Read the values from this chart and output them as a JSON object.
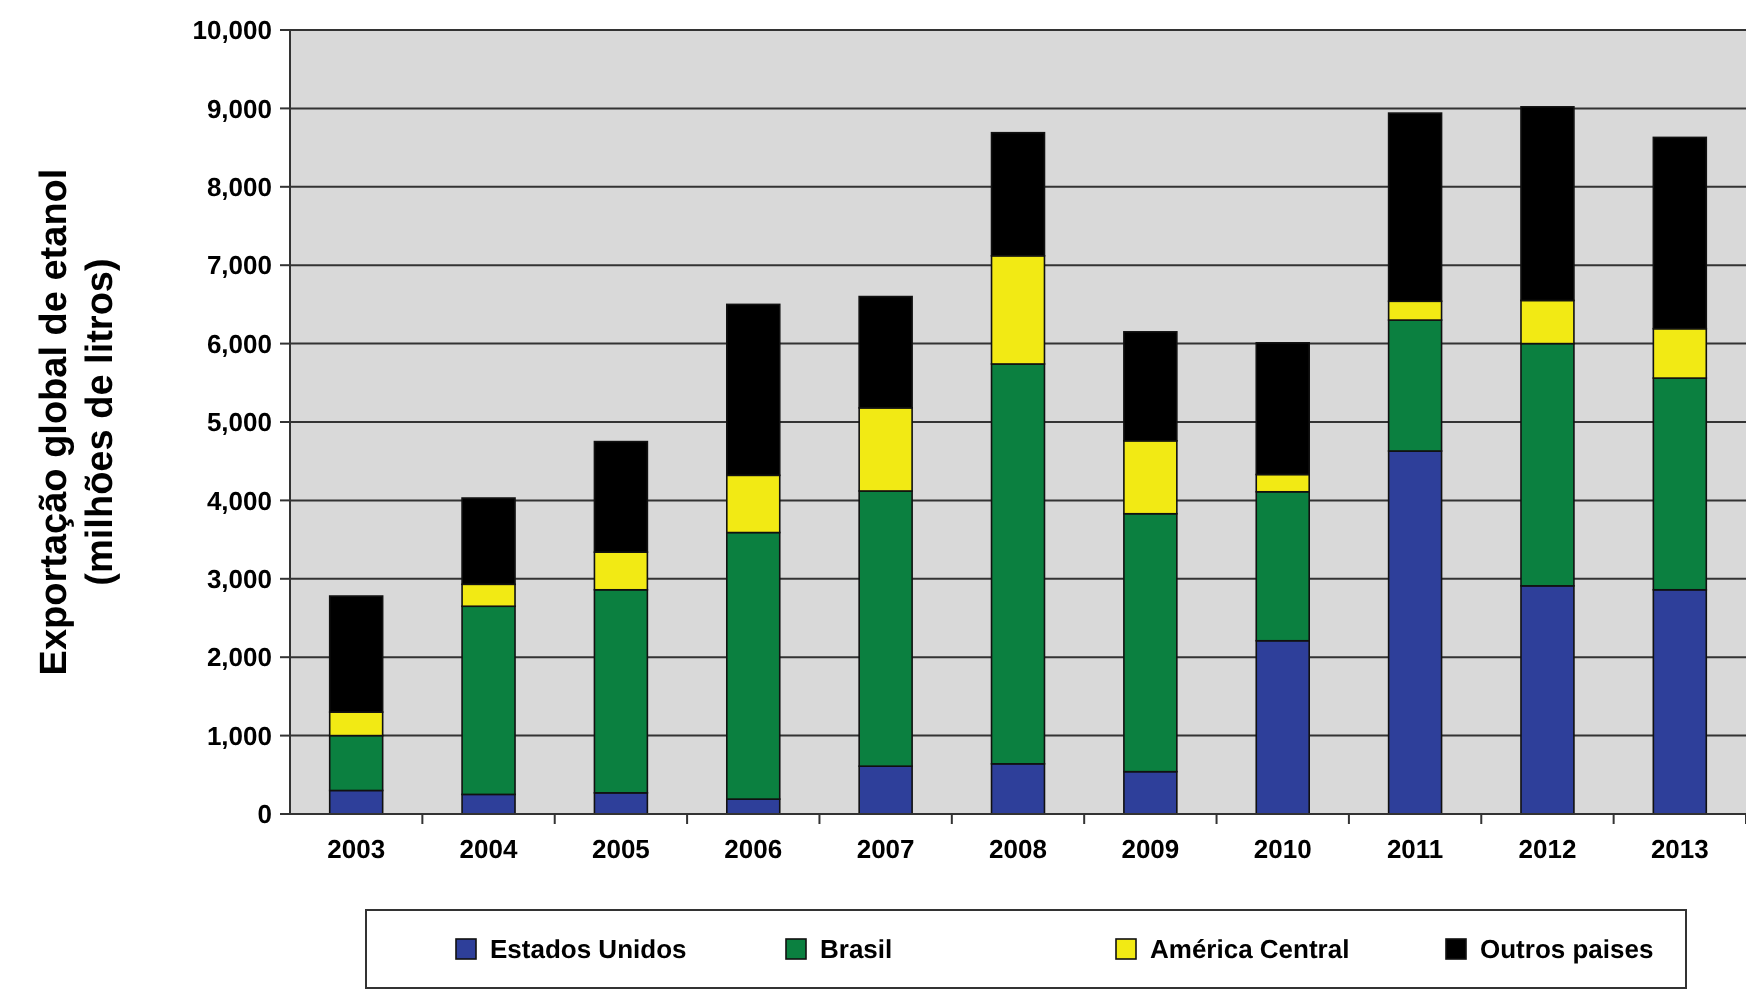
{
  "chart_data": {
    "type": "bar",
    "stacked": true,
    "ylabel": "Exportação global de etanol\n(milhões de litros)",
    "categories": [
      "2003",
      "2004",
      "2005",
      "2006",
      "2007",
      "2008",
      "2009",
      "2010",
      "2011",
      "2012",
      "2013"
    ],
    "series": [
      {
        "name": "Estados Unidos",
        "color": "#2e3f9a",
        "values": [
          300,
          250,
          270,
          190,
          610,
          640,
          540,
          2210,
          4630,
          2910,
          2860
        ]
      },
      {
        "name": "Brasil",
        "color": "#0b8040",
        "values": [
          700,
          2400,
          2590,
          3400,
          3510,
          5100,
          3290,
          1900,
          1670,
          3090,
          2700
        ]
      },
      {
        "name": "América Central",
        "color": "#f2ea14",
        "values": [
          300,
          280,
          480,
          730,
          1060,
          1380,
          930,
          220,
          240,
          550,
          630
        ]
      },
      {
        "name": "Outros paises",
        "color": "#000000",
        "values": [
          1480,
          1100,
          1410,
          2180,
          1420,
          1570,
          1390,
          1680,
          2400,
          2470,
          2440
        ]
      }
    ],
    "ylim": [
      0,
      10000
    ],
    "yticks": [
      {
        "value": 0,
        "label": "0"
      },
      {
        "value": 1000,
        "label": "1,000"
      },
      {
        "value": 2000,
        "label": "2,000"
      },
      {
        "value": 3000,
        "label": "3,000"
      },
      {
        "value": 4000,
        "label": "4,000"
      },
      {
        "value": 5000,
        "label": "5,000"
      },
      {
        "value": 6000,
        "label": "6,000"
      },
      {
        "value": 7000,
        "label": "7,000"
      },
      {
        "value": 8000,
        "label": "8,000"
      },
      {
        "value": 9000,
        "label": "9,000"
      },
      {
        "value": 10000,
        "label": "10,000"
      }
    ],
    "grid": "y",
    "legend": "bottom"
  }
}
